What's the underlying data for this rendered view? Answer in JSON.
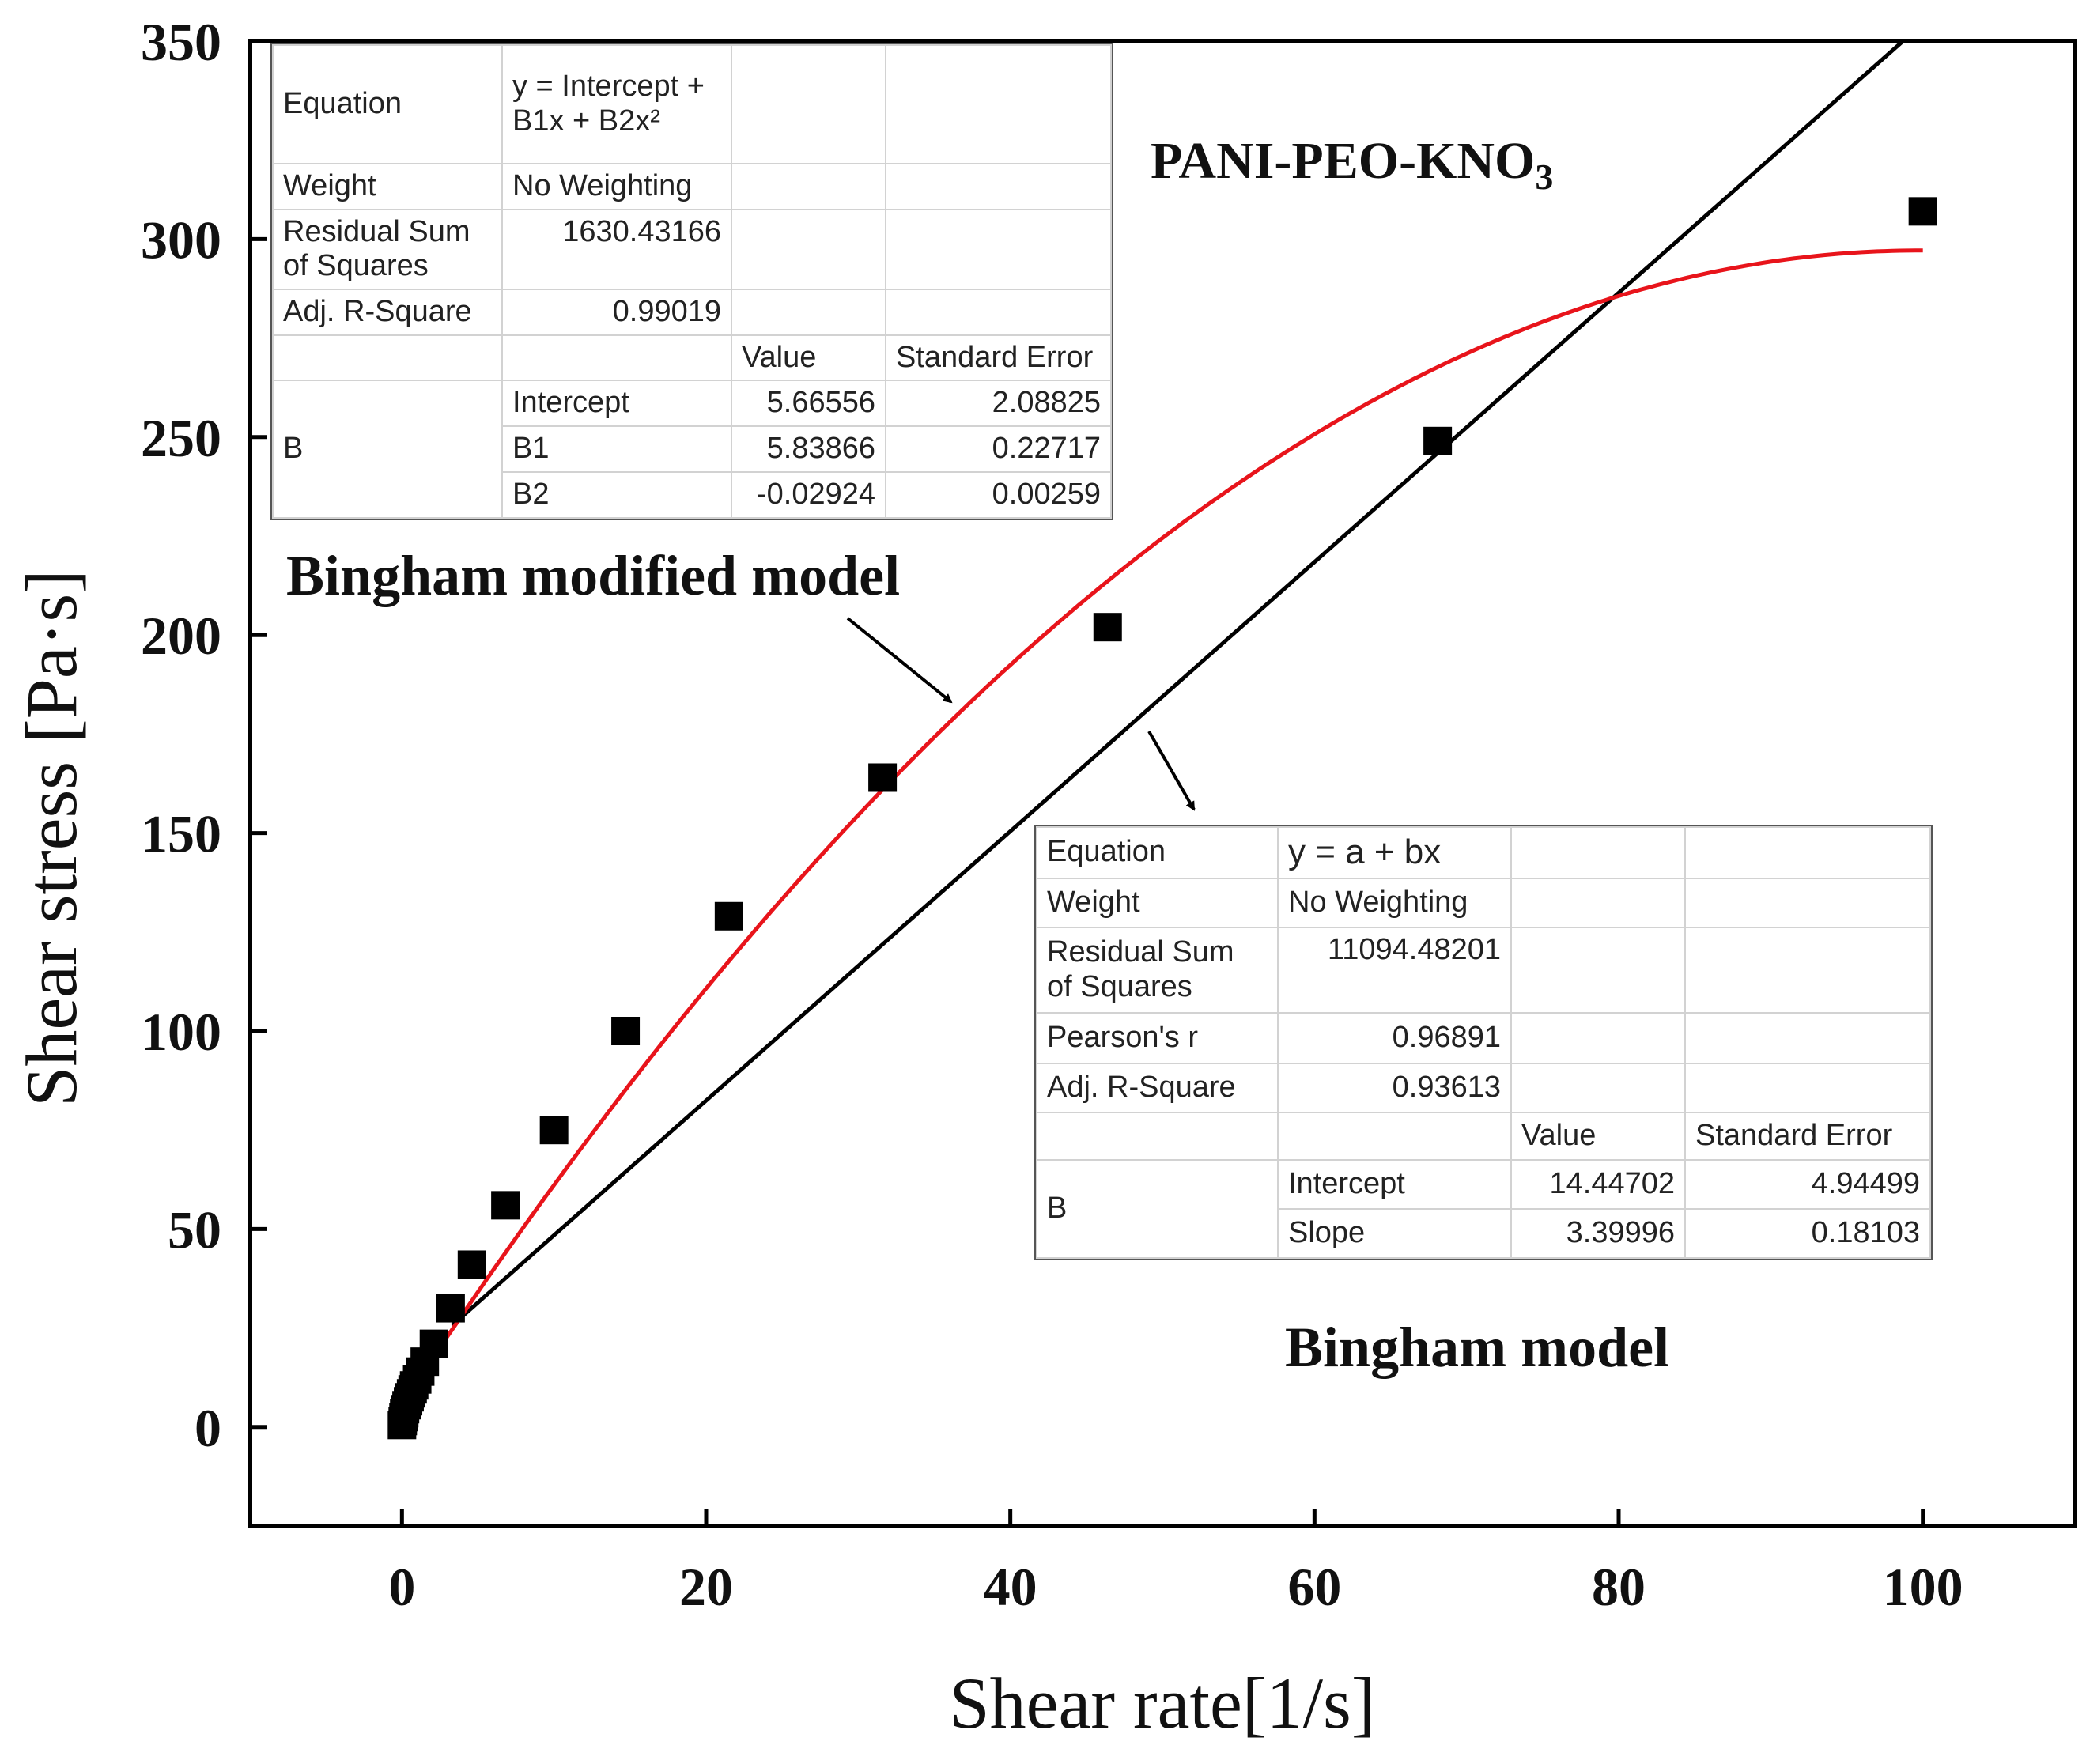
{
  "chart_data": {
    "type": "scatter",
    "title": "",
    "xlabel": "Shear rate[1/s]",
    "ylabel": "Shear stress [Pa·s]",
    "xlim": [
      -10,
      110
    ],
    "ylim": [
      -25,
      350
    ],
    "xticks": [
      0,
      20,
      40,
      60,
      80,
      100
    ],
    "yticks": [
      0,
      50,
      100,
      150,
      200,
      250,
      300,
      350
    ],
    "xtick_labels": [
      "0",
      "20",
      "40",
      "60",
      "80",
      "100"
    ],
    "ytick_labels": [
      "0",
      "50",
      "100",
      "150",
      "200",
      "250",
      "300",
      "350"
    ],
    "grid": false,
    "series": [
      {
        "name": "data",
        "kind": "scatter",
        "marker": "square",
        "color": "#000000",
        "x": [
          0.0,
          0.05,
          0.1,
          0.15,
          0.2,
          0.3,
          0.4,
          0.5,
          0.6,
          0.7,
          0.8,
          1.0,
          1.2,
          1.5,
          2.1,
          3.2,
          4.6,
          6.8,
          10.0,
          14.7,
          21.5,
          31.6,
          46.4,
          68.1,
          100.0
        ],
        "y": [
          0.5,
          1.5,
          2.5,
          3.5,
          4.5,
          5.5,
          6.5,
          7.5,
          8.5,
          9.5,
          10.5,
          12.0,
          14.0,
          16.5,
          21.0,
          30.0,
          41.0,
          56.0,
          75.0,
          100.0,
          129.0,
          164.0,
          202.0,
          249.0,
          307.0
        ]
      },
      {
        "name": "Bingham modified model",
        "kind": "line",
        "color": "#e8141b",
        "equation": {
          "intercept": 5.66556,
          "b1": 5.83866,
          "b2": -0.02924
        },
        "x_range": [
          0,
          100
        ]
      },
      {
        "name": "Bingham model",
        "kind": "line",
        "color": "#000000",
        "equation": {
          "a": 14.44702,
          "b": 3.39996
        },
        "x_range": [
          3.3,
          99
        ]
      }
    ],
    "annotations": {
      "compound_label": "PANI-PEO-KNO",
      "compound_subscript": "3",
      "modified_label": "Bingham modified model",
      "bingham_label": "Bingham model"
    }
  },
  "tables": {
    "modified": {
      "equation_label": "Equation",
      "equation_line1": "y = Intercept +",
      "equation_line2": "B1x + B2x²",
      "weight_label": "Weight",
      "weight_value": "No Weighting",
      "rss_label_line1": "Residual Sum",
      "rss_label_line2": "of Squares",
      "rss_value": "1630.43166",
      "adj_label": "Adj. R-Square",
      "adj_value": "0.99019",
      "value_header": "Value",
      "se_header": "Standard Error",
      "param_group": "B",
      "rows": [
        {
          "name": "Intercept",
          "value": "5.66556",
          "se": "2.08825"
        },
        {
          "name": "B1",
          "value": "5.83866",
          "se": "0.22717"
        },
        {
          "name": "B2",
          "value": "-0.02924",
          "se": "0.00259"
        }
      ]
    },
    "bingham": {
      "equation_label": "Equation",
      "equation_value": "y = a + bx",
      "weight_label": "Weight",
      "weight_value": "No Weighting",
      "rss_label_line1": "Residual Sum",
      "rss_label_line2": "of Squares",
      "rss_value": "11094.48201",
      "pearson_label": "Pearson's r",
      "pearson_value": "0.96891",
      "adj_label": "Adj. R-Square",
      "adj_value": "0.93613",
      "value_header": "Value",
      "se_header": "Standard Error",
      "param_group": "B",
      "rows": [
        {
          "name": "Intercept",
          "value": "14.44702",
          "se": "4.94499"
        },
        {
          "name": "Slope",
          "value": "3.39996",
          "se": "0.18103"
        }
      ]
    }
  }
}
